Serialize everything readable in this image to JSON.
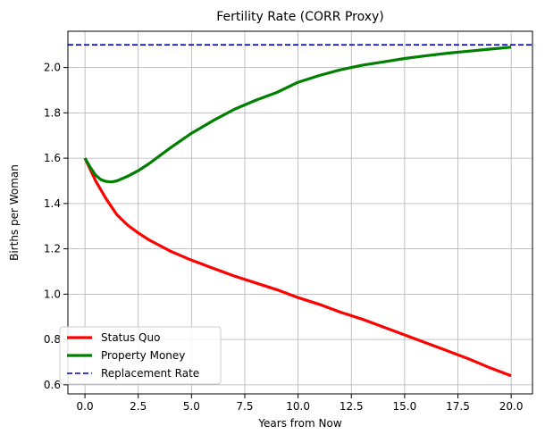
{
  "chart_data": {
    "type": "line",
    "title": "Fertility Rate (CORR Proxy)",
    "xlabel": "Years from Now",
    "ylabel": "Births per Woman",
    "xlim": [
      -0.8,
      21.0
    ],
    "ylim": [
      0.56,
      2.16
    ],
    "xticks": [
      0.0,
      2.5,
      5.0,
      7.5,
      10.0,
      12.5,
      15.0,
      17.5,
      20.0
    ],
    "xtick_labels": [
      "0.0",
      "2.5",
      "5.0",
      "7.5",
      "10.0",
      "12.5",
      "15.0",
      "17.5",
      "20.0"
    ],
    "yticks": [
      0.6,
      0.8,
      1.0,
      1.2,
      1.4,
      1.6,
      1.8,
      2.0
    ],
    "ytick_labels": [
      "0.6",
      "0.8",
      "1.0",
      "1.2",
      "1.4",
      "1.6",
      "1.8",
      "2.0"
    ],
    "grid": true,
    "legend_position": "lower-left",
    "series": [
      {
        "name": "Status Quo",
        "color": "#ff0000",
        "style": "solid",
        "x": [
          0,
          0.5,
          1,
          1.5,
          2,
          2.5,
          3,
          4,
          5,
          6,
          7,
          8,
          9,
          10,
          11,
          12,
          13,
          14,
          15,
          16,
          17,
          18,
          19,
          20
        ],
        "y": [
          1.6,
          1.5,
          1.42,
          1.35,
          1.305,
          1.27,
          1.24,
          1.19,
          1.15,
          1.115,
          1.08,
          1.05,
          1.02,
          0.985,
          0.955,
          0.92,
          0.89,
          0.855,
          0.82,
          0.785,
          0.75,
          0.715,
          0.675,
          0.64
        ]
      },
      {
        "name": "Property Money",
        "color": "#008000",
        "style": "solid",
        "x": [
          0,
          0.25,
          0.5,
          0.75,
          1,
          1.25,
          1.5,
          2,
          2.5,
          3,
          4,
          5,
          6,
          7,
          8,
          9,
          10,
          11,
          12,
          13,
          14,
          15,
          16,
          17,
          18,
          19,
          20
        ],
        "y": [
          1.6,
          1.56,
          1.525,
          1.505,
          1.497,
          1.495,
          1.5,
          1.52,
          1.545,
          1.575,
          1.645,
          1.71,
          1.765,
          1.815,
          1.855,
          1.89,
          1.935,
          1.965,
          1.99,
          2.01,
          2.025,
          2.04,
          2.052,
          2.063,
          2.072,
          2.081,
          2.09
        ]
      },
      {
        "name": "Replacement Rate",
        "color": "#0000cc",
        "style": "dashed",
        "x": [
          -0.8,
          21.0
        ],
        "y": [
          2.1,
          2.1
        ]
      }
    ]
  }
}
